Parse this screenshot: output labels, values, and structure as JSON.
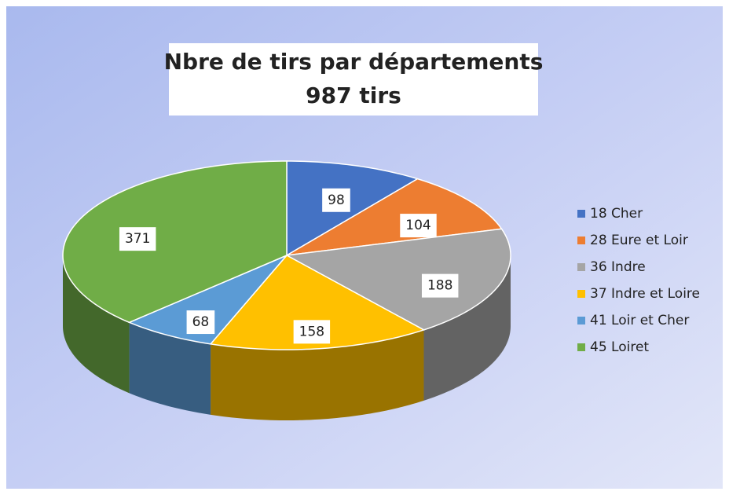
{
  "chart_data": {
    "type": "pie3d",
    "title": "Nbre de tirs par départements",
    "subtitle": "987 tirs",
    "categories": [
      "18 Cher",
      "28 Eure et Loir",
      "36 Indre",
      "37 Indre et Loire",
      "41 Loir et Cher",
      "45 Loiret"
    ],
    "values": [
      98,
      104,
      188,
      158,
      68,
      371
    ],
    "colors": [
      "#4472c4",
      "#ed7d31",
      "#a5a5a5",
      "#ffc000",
      "#5b9bd5",
      "#70ad47"
    ],
    "legend": "right"
  }
}
